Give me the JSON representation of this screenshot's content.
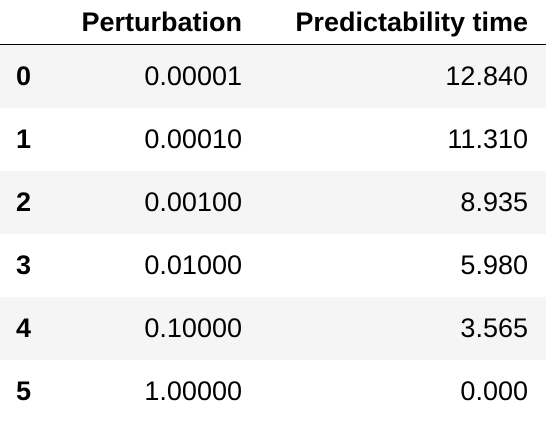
{
  "table": {
    "columns": [
      "Perturbation",
      "Predictability time"
    ],
    "rows": [
      {
        "index": "0",
        "perturbation": "0.00001",
        "predictability_time": "12.840"
      },
      {
        "index": "1",
        "perturbation": "0.00010",
        "predictability_time": "11.310"
      },
      {
        "index": "2",
        "perturbation": "0.00100",
        "predictability_time": "8.935"
      },
      {
        "index": "3",
        "perturbation": "0.01000",
        "predictability_time": "5.980"
      },
      {
        "index": "4",
        "perturbation": "0.10000",
        "predictability_time": "3.565"
      },
      {
        "index": "5",
        "perturbation": "1.00000",
        "predictability_time": "0.000"
      }
    ]
  }
}
